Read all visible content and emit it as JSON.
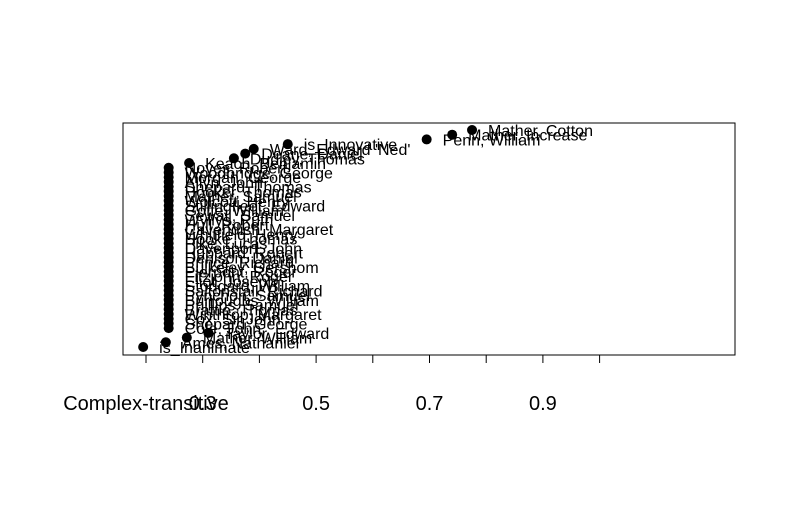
{
  "chart_data": {
    "type": "scatter",
    "title": "",
    "xlabel": "",
    "ylabel": "",
    "xlim": [
      0.15,
      1.01
    ],
    "x_ticks": [
      0.2,
      0.3,
      0.4,
      0.5,
      0.6,
      0.7,
      0.8,
      0.9,
      1.0
    ],
    "x_tick_labels": [
      {
        "value": 0.2,
        "label": "Complex-transitive"
      },
      {
        "value": 0.3,
        "label": "0.3"
      },
      {
        "value": 0.5,
        "label": "0.5"
      },
      {
        "value": 0.7,
        "label": "0.7"
      },
      {
        "value": 0.9,
        "label": "0.9"
      }
    ],
    "grid": false,
    "legend": "none",
    "marker_color": "#000000",
    "points": [
      {
        "label": "is_Inanimate",
        "x": 0.195
      },
      {
        "label": "Ames, Nathaniel",
        "x": 0.235
      },
      {
        "label": "Mather, William",
        "x": 0.272
      },
      {
        "label": "Taylor, Edward",
        "x": 0.31
      },
      {
        "label": "Cole, John",
        "x": 0.24
      },
      {
        "label": "Shepard, George",
        "x": 0.24
      },
      {
        "label": "Cox, Sir John",
        "x": 0.24
      },
      {
        "label": "Winthrop, Margaret",
        "x": 0.24
      },
      {
        "label": "Brattle, Thomas",
        "x": 0.24
      },
      {
        "label": "Phillips, Samuel",
        "x": 0.24
      },
      {
        "label": "Burroughs, William",
        "x": 0.24
      },
      {
        "label": "Pynchon, Samuel",
        "x": 0.24
      },
      {
        "label": "Saltonstall, Richard",
        "x": 0.24
      },
      {
        "label": "Stoddard, William",
        "x": 0.24
      },
      {
        "label": "Eliot, Joseph",
        "x": 0.24
      },
      {
        "label": "Fitzjohn, Roger",
        "x": 0.24
      },
      {
        "label": "Pierpont, Roger",
        "x": 0.24
      },
      {
        "label": "Bulkeley, Gershom",
        "x": 0.24
      },
      {
        "label": "Prince, Richard",
        "x": 0.24
      },
      {
        "label": "Denison, Daniel",
        "x": 0.24
      },
      {
        "label": "Hubbard, Robert",
        "x": 0.24
      },
      {
        "label": "Davenport, John",
        "x": 0.24
      },
      {
        "label": "Pike, Lucas",
        "x": 0.24
      },
      {
        "label": "Hooke, Thomas",
        "x": 0.24
      },
      {
        "label": "Whitfield, Henry",
        "x": 0.24
      },
      {
        "label": "Cavendish, Margaret",
        "x": 0.24
      },
      {
        "label": "Hull, Robert",
        "x": 0.24
      },
      {
        "label": "Wyllys, Ruth",
        "x": 0.24
      },
      {
        "label": "Sewall, Samuel",
        "x": 0.24
      },
      {
        "label": "Goffe, William",
        "x": 0.24
      },
      {
        "label": "Stillingfleet, Edward",
        "x": 0.24
      },
      {
        "label": "Wolcott, Henry",
        "x": 0.24
      },
      {
        "label": "Mather, Samuel",
        "x": 0.24
      },
      {
        "label": "Hooker, Thomas",
        "x": 0.24
      },
      {
        "label": "Shepard, Thomas",
        "x": 0.24
      },
      {
        "label": "Allyn, John",
        "x": 0.24
      },
      {
        "label": "Morgan, George",
        "x": 0.24
      },
      {
        "label": "Woodbridge, George",
        "x": 0.24
      },
      {
        "label": "Noyes, Robert",
        "x": 0.24
      },
      {
        "label": "Keach, Benjamin",
        "x": 0.276
      },
      {
        "label": "Dudley, Thomas",
        "x": 0.355
      },
      {
        "label": "Deane, Daniel",
        "x": 0.375
      },
      {
        "label": "Ward, Edward 'Ned'",
        "x": 0.39
      },
      {
        "label": "is_Innovative",
        "x": 0.45
      },
      {
        "label": "Penn, William",
        "x": 0.695
      },
      {
        "label": "Mather, Increase",
        "x": 0.74
      },
      {
        "label": "Mather, Cotton",
        "x": 0.775
      }
    ]
  }
}
